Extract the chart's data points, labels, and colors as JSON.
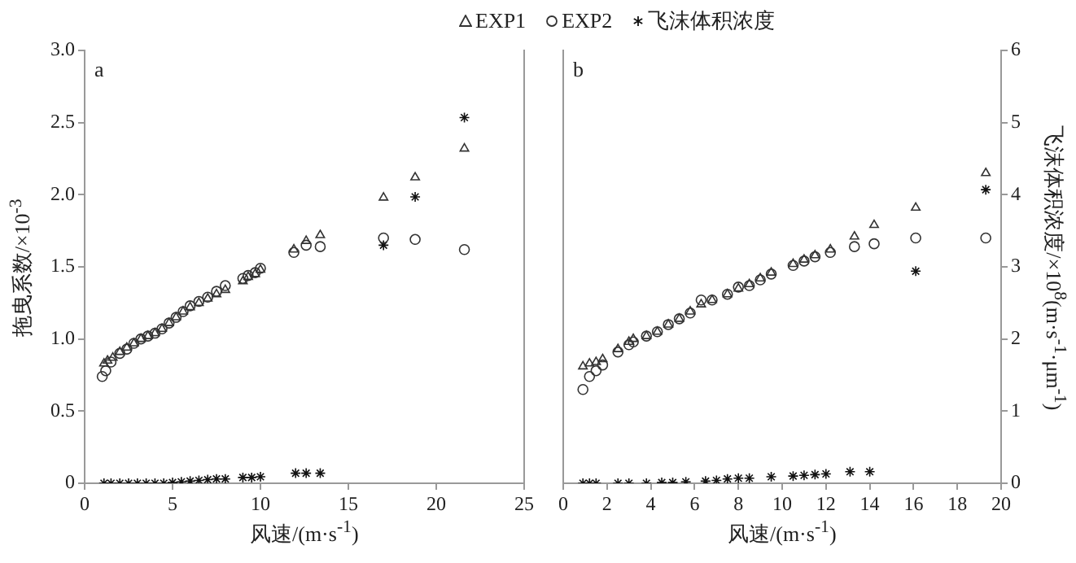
{
  "chart_data": [
    {
      "type": "scatter",
      "annotations": [
        "a"
      ],
      "xlabel": "风速/(m·s$^{-1}$)",
      "ylabel": "拖曳系数/×10$^{-3}$",
      "legend": "top",
      "xlim": [
        0,
        25
      ],
      "xticks": [
        0,
        5,
        10,
        15,
        20,
        25
      ],
      "ylim": [
        0,
        3
      ],
      "yticks": [
        0,
        0.5,
        {
          "value": 1,
          "label": "1.0"
        },
        1.5,
        {
          "value": 2,
          "label": "2.0"
        },
        2.5,
        {
          "value": 3,
          "label": "3.0"
        }
      ],
      "y2lim": [
        0,
        6
      ],
      "tick_labels": "xy",
      "series": [
        {
          "name": "EXP1",
          "color": "#333333",
          "marker": "triangle",
          "x": [
            1.1,
            1.3,
            1.6,
            2.0,
            2.4,
            2.8,
            3.2,
            3.6,
            4.0,
            4.4,
            4.8,
            5.2,
            5.6,
            6.0,
            6.5,
            7.0,
            7.5,
            8.0,
            9.0,
            9.3,
            9.7,
            10.0,
            11.9,
            12.6,
            13.4,
            17.0,
            18.8,
            21.6
          ],
          "values": [
            0.83,
            0.85,
            0.87,
            0.91,
            0.94,
            0.97,
            1.0,
            1.02,
            1.04,
            1.07,
            1.11,
            1.15,
            1.19,
            1.22,
            1.25,
            1.28,
            1.31,
            1.34,
            1.4,
            1.43,
            1.45,
            1.48,
            1.62,
            1.68,
            1.72,
            1.98,
            2.12,
            2.32
          ]
        },
        {
          "name": "EXP2",
          "color": "#333333",
          "marker": "circle",
          "x": [
            1.0,
            1.2,
            1.5,
            2.0,
            2.4,
            2.8,
            3.2,
            3.6,
            4.0,
            4.4,
            4.8,
            5.2,
            5.6,
            6.0,
            6.5,
            7.0,
            7.5,
            8.0,
            9.0,
            9.3,
            9.7,
            10.0,
            11.9,
            12.6,
            13.4,
            17.0,
            18.8,
            21.6
          ],
          "values": [
            0.74,
            0.78,
            0.84,
            0.9,
            0.93,
            0.97,
            1.0,
            1.02,
            1.04,
            1.07,
            1.11,
            1.15,
            1.19,
            1.23,
            1.26,
            1.29,
            1.33,
            1.37,
            1.42,
            1.44,
            1.46,
            1.49,
            1.6,
            1.65,
            1.64,
            1.7,
            1.69,
            1.62
          ]
        },
        {
          "name": "飞沫体积浓度",
          "color": "#111111",
          "marker": "cross",
          "axis": "y2",
          "x": [
            1.1,
            1.5,
            2.0,
            2.5,
            3.0,
            3.5,
            4.0,
            4.5,
            5.0,
            5.5,
            6.0,
            6.5,
            7.0,
            7.5,
            8.0,
            9.0,
            9.5,
            10.0,
            12.0,
            12.6,
            13.4,
            17.0,
            18.8,
            21.6
          ],
          "values": [
            0,
            0,
            0,
            0,
            0,
            0,
            0,
            0,
            0.01,
            0.02,
            0.03,
            0.04,
            0.05,
            0.06,
            0.06,
            0.08,
            0.08,
            0.09,
            0.14,
            0.14,
            0.14,
            3.3,
            3.97,
            5.07
          ]
        }
      ]
    },
    {
      "type": "scatter",
      "annotations": [
        "b"
      ],
      "xlabel": "风速/(m·s$^{-1}$)",
      "y2label": "飞沫体积浓度/×10$^{8}$(m·s$^{-1}$·μm$^{-1}$)",
      "xlim": [
        0,
        20
      ],
      "xticks": [
        0,
        2,
        4,
        6,
        8,
        10,
        12,
        14,
        16,
        18,
        20
      ],
      "ylim": [
        0,
        3
      ],
      "y2lim": [
        0,
        6
      ],
      "y2ticks": [
        0,
        1,
        2,
        3,
        4,
        5,
        6
      ],
      "series": [
        {
          "color": "#333333",
          "marker": "triangle",
          "x": [
            0.9,
            1.2,
            1.5,
            1.8,
            2.5,
            3.0,
            3.2,
            3.8,
            4.3,
            4.8,
            5.3,
            5.8,
            6.3,
            6.8,
            7.5,
            8.0,
            8.5,
            9.0,
            9.5,
            10.5,
            11.0,
            11.5,
            12.2,
            13.3,
            14.2,
            16.1,
            19.3
          ],
          "values": [
            0.81,
            0.83,
            0.84,
            0.86,
            0.93,
            0.98,
            1.0,
            1.02,
            1.05,
            1.1,
            1.14,
            1.19,
            1.24,
            1.27,
            1.31,
            1.35,
            1.38,
            1.42,
            1.46,
            1.52,
            1.55,
            1.58,
            1.62,
            1.71,
            1.79,
            1.91,
            2.15
          ]
        },
        {
          "color": "#333333",
          "marker": "circle",
          "x": [
            0.9,
            1.2,
            1.5,
            1.8,
            2.5,
            3.0,
            3.2,
            3.8,
            4.3,
            4.8,
            5.3,
            5.8,
            6.3,
            6.8,
            7.5,
            8.0,
            8.5,
            9.0,
            9.5,
            10.5,
            11.0,
            11.5,
            12.2,
            13.3,
            14.2,
            16.1,
            19.3
          ],
          "values": [
            0.65,
            0.74,
            0.78,
            0.82,
            0.91,
            0.96,
            0.98,
            1.02,
            1.05,
            1.1,
            1.14,
            1.18,
            1.27,
            1.27,
            1.31,
            1.36,
            1.37,
            1.41,
            1.45,
            1.51,
            1.54,
            1.57,
            1.6,
            1.64,
            1.66,
            1.7,
            1.7
          ]
        },
        {
          "color": "#111111",
          "marker": "cross",
          "axis": "y2",
          "x": [
            0.9,
            1.2,
            1.5,
            2.5,
            3.0,
            3.8,
            4.5,
            5.0,
            5.6,
            6.5,
            7.0,
            7.5,
            8.0,
            8.5,
            9.5,
            10.5,
            11.0,
            11.5,
            12.0,
            13.1,
            14.0,
            16.1,
            19.3
          ],
          "values": [
            0,
            0,
            0,
            0,
            0,
            0,
            0.01,
            0.01,
            0.02,
            0.03,
            0.04,
            0.06,
            0.07,
            0.07,
            0.09,
            0.1,
            0.11,
            0.12,
            0.13,
            0.16,
            0.16,
            2.94,
            4.07
          ]
        }
      ]
    }
  ]
}
